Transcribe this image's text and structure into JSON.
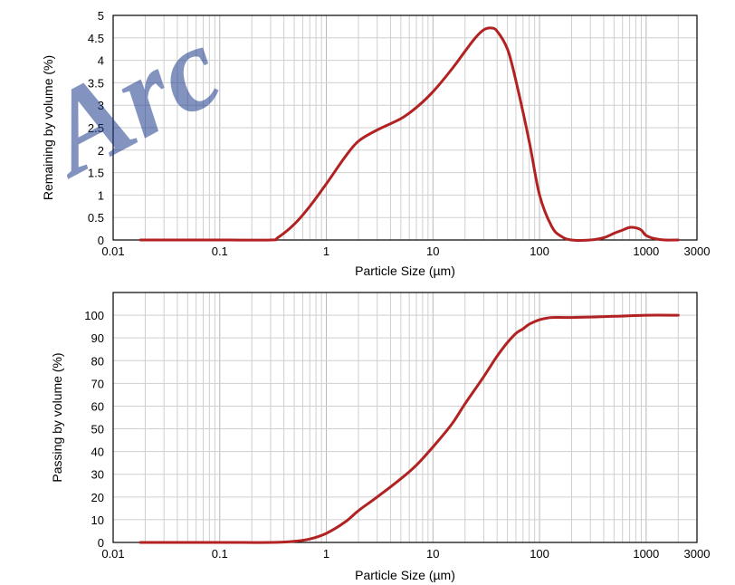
{
  "watermark": {
    "text": "Arc",
    "color": "#1e3a8a"
  },
  "chart_data": [
    {
      "type": "line",
      "xlabel": "Particle Size (µm)",
      "ylabel": "Remaining by volume (%)",
      "xscale": "log",
      "xlim": [
        0.01,
        3000
      ],
      "ylim": [
        0,
        5
      ],
      "x_tick_labels": [
        "0.01",
        "0.1",
        "1",
        "10",
        "100",
        "1000",
        "3000"
      ],
      "x_tick_values": [
        0.01,
        0.1,
        1,
        10,
        100,
        1000,
        3000
      ],
      "y_tick_labels": [
        "0",
        "0.5",
        "1",
        "1.5",
        "2",
        "2.5",
        "3",
        "3.5",
        "4",
        "4.5",
        "5"
      ],
      "y_tick_values": [
        0,
        0.5,
        1,
        1.5,
        2,
        2.5,
        3,
        3.5,
        4,
        4.5,
        5
      ],
      "grid": true,
      "line_color": "#b22222",
      "series": [
        {
          "x": [
            0.018,
            0.1,
            0.3,
            0.35,
            0.5,
            0.7,
            1,
            1.5,
            2,
            3,
            5,
            7,
            10,
            15,
            20,
            25,
            30,
            35,
            40,
            50,
            60,
            80,
            100,
            130,
            160,
            200,
            300,
            400,
            500,
            600,
            700,
            800,
            900,
            1000,
            1200,
            1500,
            2000
          ],
          "y": [
            0,
            0,
            0,
            0.05,
            0.35,
            0.75,
            1.25,
            1.85,
            2.2,
            2.45,
            2.7,
            2.95,
            3.3,
            3.8,
            4.2,
            4.5,
            4.68,
            4.72,
            4.65,
            4.25,
            3.55,
            2.2,
            1.0,
            0.3,
            0.08,
            0,
            0,
            0.05,
            0.15,
            0.22,
            0.28,
            0.27,
            0.22,
            0.1,
            0.03,
            0,
            0
          ]
        }
      ]
    },
    {
      "type": "line",
      "xlabel": "Particle Size (µm)",
      "ylabel": "Passing by volume (%)",
      "xscale": "log",
      "xlim": [
        0.01,
        3000
      ],
      "ylim": [
        0,
        110
      ],
      "x_tick_labels": [
        "0.01",
        "0.1",
        "1",
        "10",
        "100",
        "1000",
        "3000"
      ],
      "x_tick_values": [
        0.01,
        0.1,
        1,
        10,
        100,
        1000,
        3000
      ],
      "y_tick_labels": [
        "0",
        "10",
        "20",
        "30",
        "40",
        "50",
        "60",
        "70",
        "80",
        "90",
        "100"
      ],
      "y_tick_values": [
        0,
        10,
        20,
        30,
        40,
        50,
        60,
        70,
        80,
        90,
        100
      ],
      "grid": true,
      "line_color": "#b22222",
      "series": [
        {
          "x": [
            0.018,
            0.1,
            0.3,
            0.5,
            0.7,
            1,
            1.5,
            2,
            3,
            5,
            7,
            10,
            15,
            20,
            30,
            40,
            50,
            60,
            70,
            80,
            100,
            130,
            200,
            500,
            1000,
            2000
          ],
          "y": [
            0,
            0,
            0,
            0.5,
            1.5,
            4,
            9,
            14,
            20,
            28,
            34,
            42,
            52,
            61,
            73,
            82,
            88,
            92,
            94,
            96,
            98,
            99,
            99,
            99.5,
            100,
            100
          ]
        }
      ]
    }
  ]
}
